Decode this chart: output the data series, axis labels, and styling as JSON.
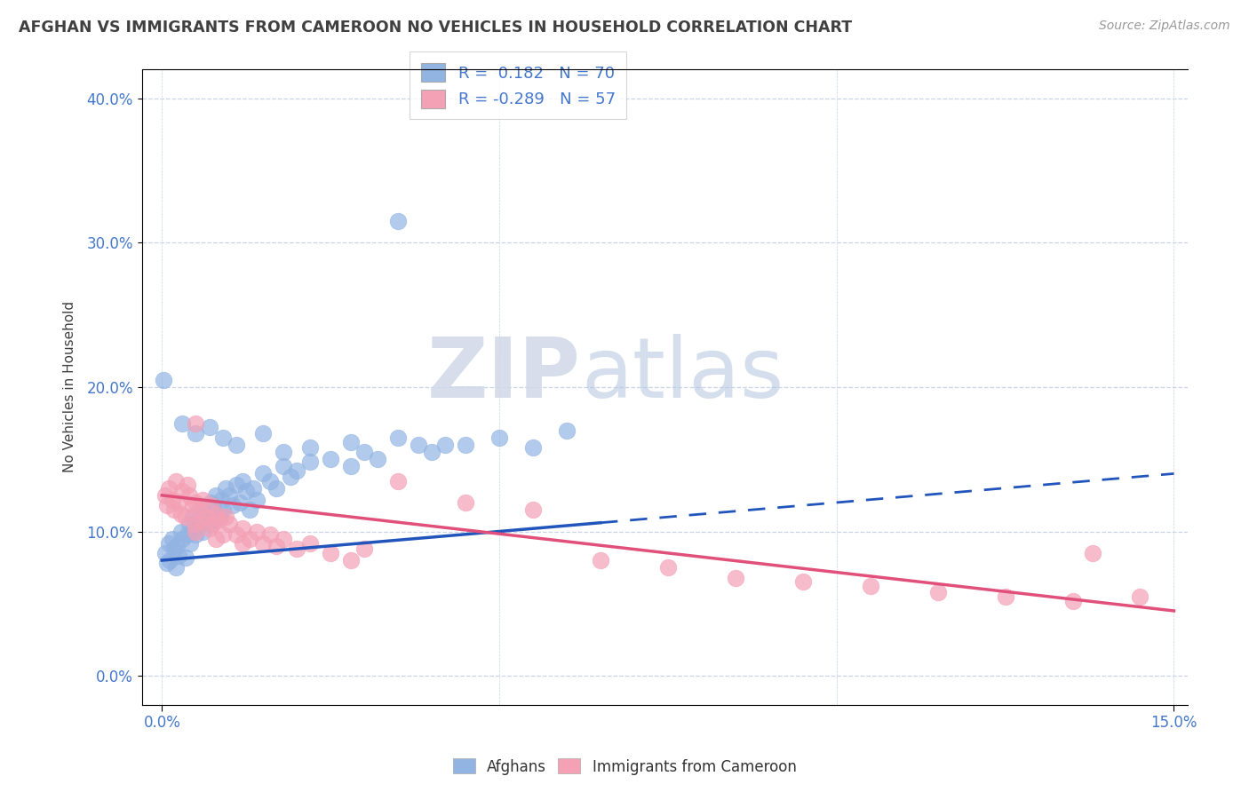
{
  "title": "AFGHAN VS IMMIGRANTS FROM CAMEROON NO VEHICLES IN HOUSEHOLD CORRELATION CHART",
  "source": "Source: ZipAtlas.com",
  "ylabel": "No Vehicles in Household",
  "xlim": [
    0.0,
    15.0
  ],
  "ylim": [
    0.0,
    42.0
  ],
  "yticks": [
    0.0,
    10.0,
    20.0,
    30.0,
    40.0
  ],
  "r_afghan": 0.182,
  "n_afghan": 70,
  "r_cameroon": -0.289,
  "n_cameroon": 57,
  "afghan_color": "#92b4e3",
  "cameroon_color": "#f4a0b5",
  "trend_afghan_color": "#2255bb",
  "trend_cameroon_color": "#e0507a",
  "watermark_zip": "ZIP",
  "watermark_atlas": "atlas",
  "background_color": "#ffffff",
  "grid_color": "#c8d4e8",
  "title_color": "#404040",
  "axis_label_color": "#4477cc",
  "afghan_scatter": [
    [
      0.05,
      8.5
    ],
    [
      0.08,
      7.8
    ],
    [
      0.1,
      9.2
    ],
    [
      0.12,
      8.0
    ],
    [
      0.15,
      9.5
    ],
    [
      0.18,
      8.8
    ],
    [
      0.2,
      7.5
    ],
    [
      0.22,
      9.0
    ],
    [
      0.25,
      8.3
    ],
    [
      0.28,
      10.0
    ],
    [
      0.3,
      9.5
    ],
    [
      0.35,
      8.2
    ],
    [
      0.38,
      9.8
    ],
    [
      0.4,
      10.5
    ],
    [
      0.42,
      9.2
    ],
    [
      0.45,
      11.0
    ],
    [
      0.48,
      10.2
    ],
    [
      0.5,
      9.8
    ],
    [
      0.55,
      10.8
    ],
    [
      0.58,
      11.5
    ],
    [
      0.6,
      10.0
    ],
    [
      0.65,
      11.2
    ],
    [
      0.7,
      10.5
    ],
    [
      0.72,
      12.0
    ],
    [
      0.75,
      11.8
    ],
    [
      0.78,
      10.8
    ],
    [
      0.8,
      12.5
    ],
    [
      0.85,
      11.0
    ],
    [
      0.88,
      12.2
    ],
    [
      0.9,
      11.5
    ],
    [
      0.95,
      13.0
    ],
    [
      1.0,
      12.5
    ],
    [
      1.05,
      11.8
    ],
    [
      1.1,
      13.2
    ],
    [
      1.15,
      12.0
    ],
    [
      1.2,
      13.5
    ],
    [
      1.25,
      12.8
    ],
    [
      1.3,
      11.5
    ],
    [
      1.35,
      13.0
    ],
    [
      1.4,
      12.2
    ],
    [
      1.5,
      14.0
    ],
    [
      1.6,
      13.5
    ],
    [
      1.7,
      13.0
    ],
    [
      1.8,
      14.5
    ],
    [
      1.9,
      13.8
    ],
    [
      2.0,
      14.2
    ],
    [
      2.2,
      14.8
    ],
    [
      2.5,
      15.0
    ],
    [
      2.8,
      14.5
    ],
    [
      3.0,
      15.5
    ],
    [
      3.2,
      15.0
    ],
    [
      3.5,
      31.5
    ],
    [
      3.8,
      16.0
    ],
    [
      4.0,
      15.5
    ],
    [
      4.5,
      16.0
    ],
    [
      5.0,
      16.5
    ],
    [
      5.5,
      15.8
    ],
    [
      6.0,
      17.0
    ],
    [
      0.02,
      20.5
    ],
    [
      0.3,
      17.5
    ],
    [
      0.5,
      16.8
    ],
    [
      0.7,
      17.2
    ],
    [
      0.9,
      16.5
    ],
    [
      1.1,
      16.0
    ],
    [
      1.5,
      16.8
    ],
    [
      1.8,
      15.5
    ],
    [
      2.2,
      15.8
    ],
    [
      2.8,
      16.2
    ],
    [
      3.5,
      16.5
    ],
    [
      4.2,
      16.0
    ]
  ],
  "cameroon_scatter": [
    [
      0.05,
      12.5
    ],
    [
      0.08,
      11.8
    ],
    [
      0.1,
      13.0
    ],
    [
      0.15,
      12.2
    ],
    [
      0.18,
      11.5
    ],
    [
      0.2,
      13.5
    ],
    [
      0.25,
      12.0
    ],
    [
      0.28,
      11.2
    ],
    [
      0.3,
      12.8
    ],
    [
      0.35,
      11.0
    ],
    [
      0.38,
      13.2
    ],
    [
      0.4,
      12.5
    ],
    [
      0.45,
      11.8
    ],
    [
      0.48,
      10.5
    ],
    [
      0.5,
      12.0
    ],
    [
      0.55,
      11.5
    ],
    [
      0.58,
      10.8
    ],
    [
      0.6,
      12.2
    ],
    [
      0.65,
      11.0
    ],
    [
      0.7,
      10.2
    ],
    [
      0.72,
      11.8
    ],
    [
      0.75,
      10.5
    ],
    [
      0.8,
      11.2
    ],
    [
      0.85,
      10.8
    ],
    [
      0.9,
      9.8
    ],
    [
      0.95,
      11.0
    ],
    [
      1.0,
      10.5
    ],
    [
      1.1,
      9.8
    ],
    [
      1.2,
      10.2
    ],
    [
      1.3,
      9.5
    ],
    [
      1.4,
      10.0
    ],
    [
      1.5,
      9.2
    ],
    [
      1.6,
      9.8
    ],
    [
      1.7,
      9.0
    ],
    [
      1.8,
      9.5
    ],
    [
      2.0,
      8.8
    ],
    [
      2.2,
      9.2
    ],
    [
      2.5,
      8.5
    ],
    [
      2.8,
      8.0
    ],
    [
      3.0,
      8.8
    ],
    [
      0.5,
      17.5
    ],
    [
      3.5,
      13.5
    ],
    [
      4.5,
      12.0
    ],
    [
      5.5,
      11.5
    ],
    [
      6.5,
      8.0
    ],
    [
      7.5,
      7.5
    ],
    [
      8.5,
      6.8
    ],
    [
      9.5,
      6.5
    ],
    [
      10.5,
      6.2
    ],
    [
      11.5,
      5.8
    ],
    [
      12.5,
      5.5
    ],
    [
      13.5,
      5.2
    ],
    [
      13.8,
      8.5
    ],
    [
      14.5,
      5.5
    ],
    [
      0.5,
      10.0
    ],
    [
      0.8,
      9.5
    ],
    [
      1.2,
      9.2
    ]
  ],
  "afghan_trend_x": [
    0.0,
    15.0
  ],
  "afghan_trend_y": [
    8.0,
    14.0
  ],
  "afghan_trend_solid_end": 6.5,
  "cameroon_trend_x": [
    0.0,
    15.0
  ],
  "cameroon_trend_y": [
    12.5,
    4.5
  ]
}
